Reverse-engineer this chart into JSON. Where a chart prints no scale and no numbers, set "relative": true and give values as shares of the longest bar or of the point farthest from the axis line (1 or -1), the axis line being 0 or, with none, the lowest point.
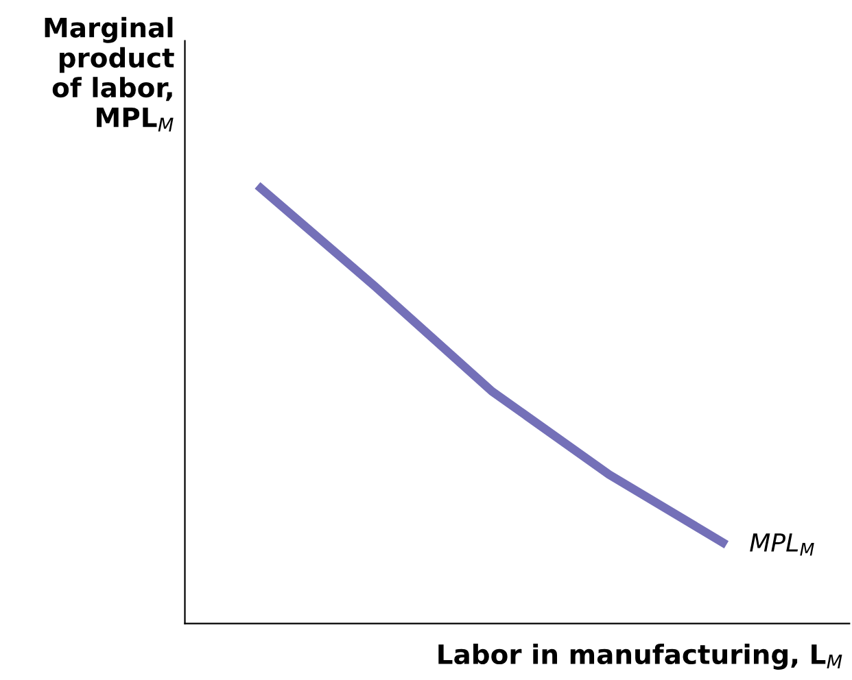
{
  "chart_data": {
    "type": "line",
    "relative": true,
    "ylabel": "Marginal\nproduct\nof labor,\nMPL$_{M}$",
    "xlabel": "Labor in manufacturing, L$_{M}$",
    "categories": [
      null,
      null,
      null,
      null,
      null
    ],
    "series": [
      {
        "name": "MPL$_{M}$",
        "color": "#7470b8",
        "values": [
          1,
          0.77,
          0.53,
          0.34,
          0.18
        ]
      }
    ],
    "legend": false,
    "marker": "none",
    "line_style": "solid"
  }
}
